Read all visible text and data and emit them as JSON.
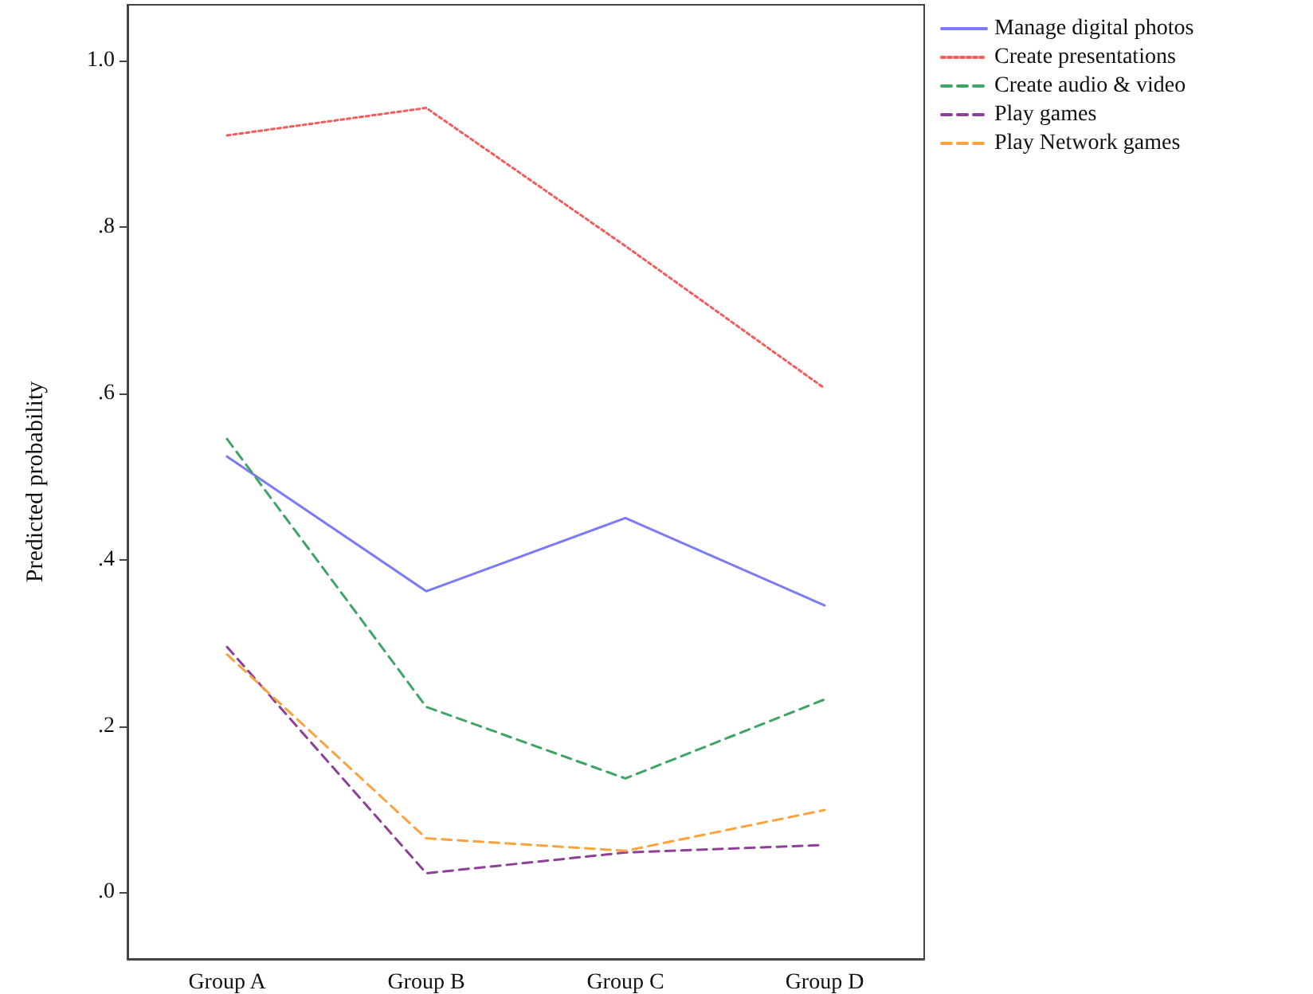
{
  "chart_data": {
    "type": "line",
    "ylabel": "Predicted probability",
    "categories": [
      "Group A",
      "Group B",
      "Group C",
      "Group D"
    ],
    "series": [
      {
        "name": "Manage digital photos",
        "color": "#7b7bf7",
        "line_style": "solid",
        "values": [
          0.524,
          0.362,
          0.45,
          0.345
        ]
      },
      {
        "name": "Create presentations",
        "color": "#f25c5c",
        "line_style": "dotted",
        "values": [
          0.91,
          0.943,
          0.777,
          0.606
        ]
      },
      {
        "name": "Create audio & video",
        "color": "#3fa565",
        "line_style": "dashed",
        "values": [
          0.545,
          0.223,
          0.137,
          0.232
        ]
      },
      {
        "name": "Play games",
        "color": "#8e3f98",
        "line_style": "dashed",
        "values": [
          0.295,
          0.023,
          0.048,
          0.057
        ]
      },
      {
        "name": "Play Network games",
        "color": "#f9a33f",
        "line_style": "dashed",
        "values": [
          0.286,
          0.065,
          0.05,
          0.099
        ]
      }
    ],
    "ylim": [
      -0.08,
      1.067
    ],
    "yticks": [
      {
        "value": 0,
        "label": ".0"
      },
      {
        "value": 0.2,
        "label": ".2"
      },
      {
        "value": 0.4,
        "label": ".4"
      },
      {
        "value": 0.6,
        "label": ".6"
      },
      {
        "value": 0.8,
        "label": ".8"
      },
      {
        "value": 1.0,
        "label": "1.0"
      }
    ],
    "grid": false,
    "legend": "top right",
    "marker": "none"
  }
}
